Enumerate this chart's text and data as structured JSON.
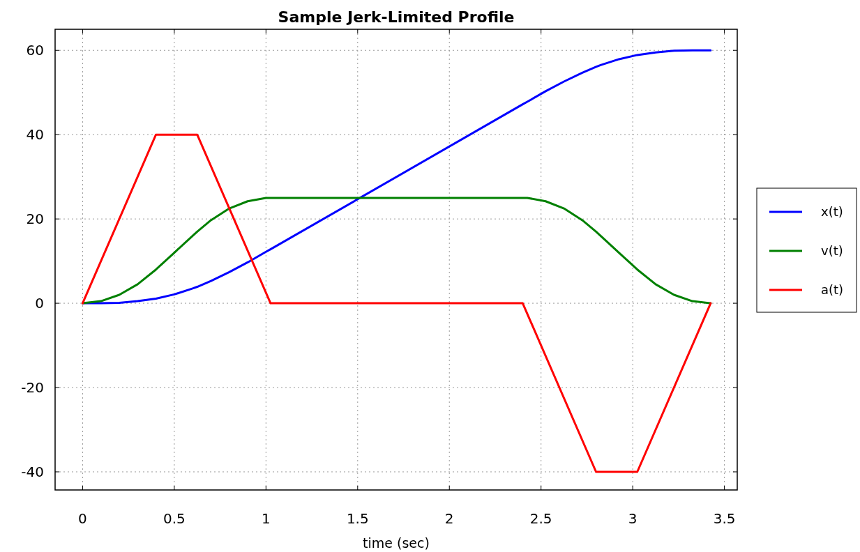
{
  "chart_data": {
    "type": "line",
    "title": "Sample Jerk-Limited Profile",
    "xlabel": "time (sec)",
    "xlim": [
      -0.15,
      3.57
    ],
    "xticks": [
      0,
      0.5,
      1,
      1.5,
      2,
      2.5,
      3,
      3.5
    ],
    "ylim": [
      -44.3,
      65
    ],
    "yticks": [
      -40,
      -20,
      0,
      20,
      40,
      60
    ],
    "grid": true,
    "legend": "right",
    "line_style": "solid",
    "marker": "none",
    "series": [
      {
        "name": "x(t)",
        "color": "#0000ff",
        "x": [
          0,
          0.1,
          0.2,
          0.3,
          0.4,
          0.5,
          0.6,
          0.625,
          0.7,
          0.8,
          0.9,
          1.0,
          1.025,
          2.4,
          2.425,
          2.525,
          2.625,
          2.725,
          2.8,
          2.825,
          2.925,
          3.025,
          3.125,
          3.225,
          3.325,
          3.425
        ],
        "values": [
          0,
          0,
          0.1,
          0.5,
          1.1,
          2.1,
          3.5,
          3.9,
          5.3,
          7.4,
          9.7,
          12.2,
          12.8,
          47.2,
          47.8,
          50.3,
          52.6,
          54.7,
          56.1,
          56.5,
          57.9,
          58.9,
          59.5,
          59.9,
          60,
          60
        ]
      },
      {
        "name": "v(t)",
        "color": "#008000",
        "x": [
          0,
          0.1,
          0.2,
          0.3,
          0.4,
          0.5,
          0.6,
          0.625,
          0.7,
          0.8,
          0.9,
          1.0,
          1.025,
          2.4,
          2.425,
          2.525,
          2.625,
          2.725,
          2.8,
          2.825,
          2.925,
          3.025,
          3.125,
          3.225,
          3.325,
          3.425
        ],
        "values": [
          0,
          0.5,
          2,
          4.5,
          8,
          12,
          16,
          17,
          19.7,
          22.5,
          24.2,
          25,
          25,
          25,
          25,
          24.2,
          22.5,
          19.7,
          17,
          16,
          12,
          8,
          4.5,
          2,
          0.5,
          0
        ]
      },
      {
        "name": "a(t)",
        "color": "#ff0000",
        "x": [
          0,
          0.4,
          0.625,
          1.025,
          2.4,
          2.8,
          3.025,
          3.425
        ],
        "values": [
          0,
          40,
          40,
          0,
          0,
          -40,
          -40,
          0
        ]
      }
    ]
  }
}
